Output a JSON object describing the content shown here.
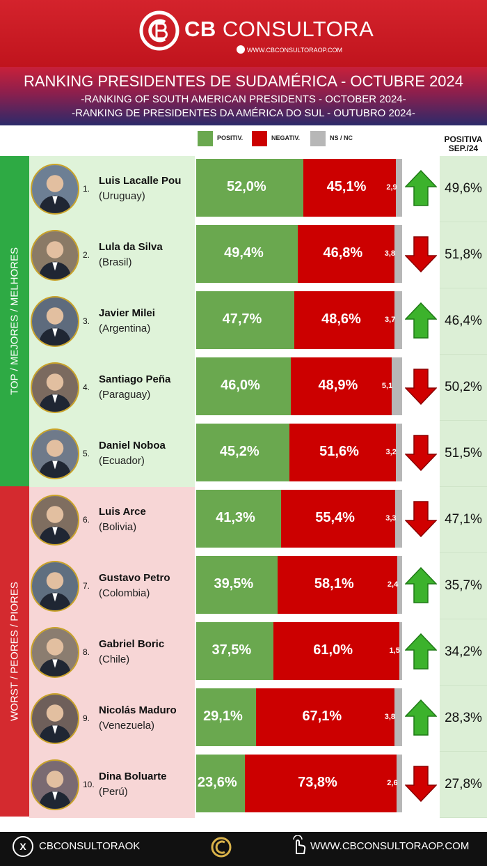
{
  "header": {
    "brand_bold": "CB",
    "brand_light": "CONSULTORA",
    "url": "WWW.CBCONSULTORAOP.COM"
  },
  "title": {
    "main": "RANKING PRESIDENTES DE SUDAMÉRICA - OCTUBRE 2024",
    "en": "-RANKING OF SOUTH AMERICAN PRESIDENTS - OCTOBER 2024-",
    "pt": "-RANKING DE PRESIDENTES DA AMÉRICA DO SUL - OUTUBRO 2024-"
  },
  "legend": [
    {
      "label": "POSITIV.",
      "color": "#6aa84f"
    },
    {
      "label": "NEGATIV.",
      "color": "#cc0000"
    },
    {
      "label": "NS / NC",
      "color": "#b7b7b7"
    }
  ],
  "prev_header_line1": "POSITIVA",
  "prev_header_line2": "SEP./24",
  "side": {
    "top": "TOP / MEJORES / MELHORES",
    "worst": "WORST / PEORES / PIORES"
  },
  "chart_data": {
    "type": "bar",
    "stacked": true,
    "orientation": "horizontal",
    "series_names": [
      "POSITIV.",
      "NEGATIV.",
      "NS / NC"
    ],
    "rows": [
      {
        "rank": "1.",
        "name": "Luis Lacalle Pou",
        "country": "(Uruguay)",
        "positive": 52.0,
        "negative": 45.1,
        "ns": 2.9,
        "positive_label": "52,0%",
        "negative_label": "45,1%",
        "ns_label": "2,9",
        "trend": "up",
        "prev_label": "49,6%",
        "prev": 49.6
      },
      {
        "rank": "2.",
        "name": "Lula da Silva",
        "country": "(Brasil)",
        "positive": 49.4,
        "negative": 46.8,
        "ns": 3.8,
        "positive_label": "49,4%",
        "negative_label": "46,8%",
        "ns_label": "3,8",
        "trend": "down",
        "prev_label": "51,8%",
        "prev": 51.8
      },
      {
        "rank": "3.",
        "name": "Javier Milei",
        "country": "(Argentina)",
        "positive": 47.7,
        "negative": 48.6,
        "ns": 3.7,
        "positive_label": "47,7%",
        "negative_label": "48,6%",
        "ns_label": "3,7",
        "trend": "up",
        "prev_label": "46,4%",
        "prev": 46.4
      },
      {
        "rank": "4.",
        "name": "Santiago Peña",
        "country": "(Paraguay)",
        "positive": 46.0,
        "negative": 48.9,
        "ns": 5.1,
        "positive_label": "46,0%",
        "negative_label": "48,9%",
        "ns_label": "5,1",
        "trend": "down",
        "prev_label": "50,2%",
        "prev": 50.2
      },
      {
        "rank": "5.",
        "name": "Daniel Noboa",
        "country": "(Ecuador)",
        "positive": 45.2,
        "negative": 51.6,
        "ns": 3.2,
        "positive_label": "45,2%",
        "negative_label": "51,6%",
        "ns_label": "3,2",
        "trend": "down",
        "prev_label": "51,5%",
        "prev": 51.5
      },
      {
        "rank": "6.",
        "name": "Luis Arce",
        "country": "(Bolivia)",
        "positive": 41.3,
        "negative": 55.4,
        "ns": 3.3,
        "positive_label": "41,3%",
        "negative_label": "55,4%",
        "ns_label": "3,3",
        "trend": "down",
        "prev_label": "47,1%",
        "prev": 47.1
      },
      {
        "rank": "7.",
        "name": "Gustavo Petro",
        "country": "(Colombia)",
        "positive": 39.5,
        "negative": 58.1,
        "ns": 2.4,
        "positive_label": "39,5%",
        "negative_label": "58,1%",
        "ns_label": "2,4",
        "trend": "up",
        "prev_label": "35,7%",
        "prev": 35.7
      },
      {
        "rank": "8.",
        "name": "Gabriel Boric",
        "country": "(Chile)",
        "positive": 37.5,
        "negative": 61.0,
        "ns": 1.5,
        "positive_label": "37,5%",
        "negative_label": "61,0%",
        "ns_label": "1,5",
        "trend": "up",
        "prev_label": "34,2%",
        "prev": 34.2
      },
      {
        "rank": "9.",
        "name": "Nicolás Maduro",
        "country": "(Venezuela)",
        "positive": 29.1,
        "negative": 67.1,
        "ns": 3.8,
        "positive_label": "29,1%",
        "negative_label": "67,1%",
        "ns_label": "3,8",
        "trend": "up",
        "prev_label": "28,3%",
        "prev": 28.3
      },
      {
        "rank": "10.",
        "name": "Dina Boluarte",
        "country": "(Perú)",
        "positive": 23.6,
        "negative": 73.8,
        "ns": 2.6,
        "positive_label": "23,6%",
        "negative_label": "73,8%",
        "ns_label": "2,6",
        "trend": "down",
        "prev_label": "27,8%",
        "prev": 27.8
      }
    ],
    "colors": {
      "positive": "#6aa84f",
      "negative": "#cc0000",
      "ns": "#b7b7b7",
      "up": "#3cb22c",
      "down": "#d00000"
    }
  },
  "footer": {
    "handle": "CBCONSULTORAOK",
    "url": "WWW.CBCONSULTORAOP.COM"
  }
}
